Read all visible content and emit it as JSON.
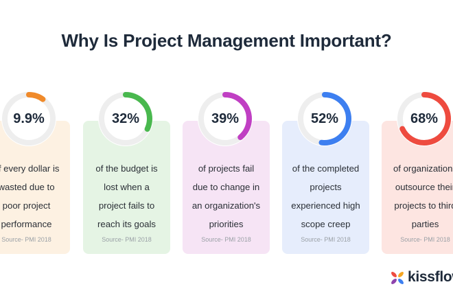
{
  "title": "Why Is Project Management Important?",
  "stats": [
    {
      "value": "9.9%",
      "fraction": 0.099,
      "lines": [
        "of every dollar is",
        "wasted due to",
        "poor project",
        "performance"
      ],
      "source": "Source- PMI 2018",
      "accent": "#f08a2a",
      "card_bg": "#fdf1e2"
    },
    {
      "value": "32%",
      "fraction": 0.32,
      "lines": [
        "of the budget is",
        "lost when a",
        "project fails to",
        "reach its goals"
      ],
      "source": "Source- PMI 2018",
      "accent": "#49b84e",
      "card_bg": "#e5f4e4"
    },
    {
      "value": "39%",
      "fraction": 0.39,
      "lines": [
        "of projects fail",
        "due to change in",
        "an organization's",
        "priorities"
      ],
      "source": "Source- PMI 2018",
      "accent": "#c03fc3",
      "card_bg": "#f6e4f5"
    },
    {
      "value": "52%",
      "fraction": 0.52,
      "lines": [
        "of the completed",
        "projects",
        "experienced high",
        "scope creep"
      ],
      "source": "Source- PMI 2018",
      "accent": "#3d7ff0",
      "card_bg": "#e6edfc"
    },
    {
      "value": "68%",
      "fraction": 0.68,
      "lines": [
        "of organizations",
        "outsource their",
        "projects to third",
        "parties"
      ],
      "source": "Source- PMI 2018",
      "accent": "#ee4b3f",
      "card_bg": "#fde5e1"
    }
  ],
  "logo": {
    "text": "kissflow",
    "icon": "kissflow-petals-icon",
    "colors": [
      "#ee4b3f",
      "#f5a623",
      "#3d7ff0",
      "#8e44ad"
    ]
  }
}
